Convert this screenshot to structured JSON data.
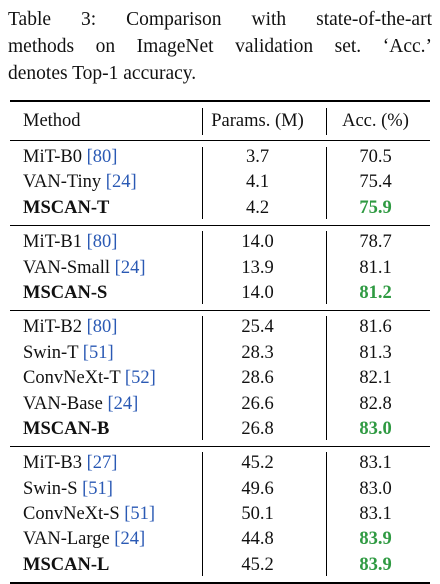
{
  "caption": {
    "lines": [
      "Table 3:   Comparison with state-of-the-art",
      "methods on ImageNet validation set. ‘Acc.’",
      "denotes Top-1 accuracy."
    ]
  },
  "header": {
    "method": "Method",
    "params": "Params. (M)",
    "acc": "Acc. (%)"
  },
  "groups": [
    {
      "rows": [
        {
          "name": "MiT-B0 ",
          "ref": "[80]",
          "params": "3.7",
          "acc": "70.5",
          "best": false
        },
        {
          "name": "VAN-Tiny ",
          "ref": "[24]",
          "params": "4.1",
          "acc": "75.4",
          "best": false
        },
        {
          "name": "MSCAN-T",
          "ref": "",
          "params": "4.2",
          "acc": "75.9",
          "best": true
        }
      ]
    },
    {
      "rows": [
        {
          "name": "MiT-B1 ",
          "ref": "[80]",
          "params": "14.0",
          "acc": "78.7",
          "best": false
        },
        {
          "name": "VAN-Small ",
          "ref": "[24]",
          "params": "13.9",
          "acc": "81.1",
          "best": false
        },
        {
          "name": "MSCAN-S",
          "ref": "",
          "params": "14.0",
          "acc": "81.2",
          "best": true
        }
      ]
    },
    {
      "rows": [
        {
          "name": "MiT-B2 ",
          "ref": "[80]",
          "params": "25.4",
          "acc": "81.6",
          "best": false
        },
        {
          "name": "Swin-T ",
          "ref": "[51]",
          "params": "28.3",
          "acc": "81.3",
          "best": false
        },
        {
          "name": "ConvNeXt-T ",
          "ref": "[52]",
          "params": "28.6",
          "acc": "82.1",
          "best": false
        },
        {
          "name": "VAN-Base ",
          "ref": "[24]",
          "params": "26.6",
          "acc": "82.8",
          "best": false
        },
        {
          "name": "MSCAN-B",
          "ref": "",
          "params": "26.8",
          "acc": "83.0",
          "best": true
        }
      ]
    },
    {
      "rows": [
        {
          "name": "MiT-B3 ",
          "ref": "[27]",
          "params": "45.2",
          "acc": "83.1",
          "best": false
        },
        {
          "name": "Swin-S ",
          "ref": "[51]",
          "params": "49.6",
          "acc": "83.0",
          "best": false
        },
        {
          "name": "ConvNeXt-S ",
          "ref": "[51]",
          "params": "50.1",
          "acc": "83.1",
          "best": false
        },
        {
          "name": "VAN-Large ",
          "ref": "[24]",
          "params": "44.8",
          "acc": "83.9",
          "best": false,
          "accGreen": true
        },
        {
          "name": "MSCAN-L",
          "ref": "",
          "params": "45.2",
          "acc": "83.9",
          "best": true
        }
      ]
    }
  ],
  "colors": {
    "reference": "#2a59b4",
    "best_value": "#2f9a42",
    "text": "#111111"
  }
}
